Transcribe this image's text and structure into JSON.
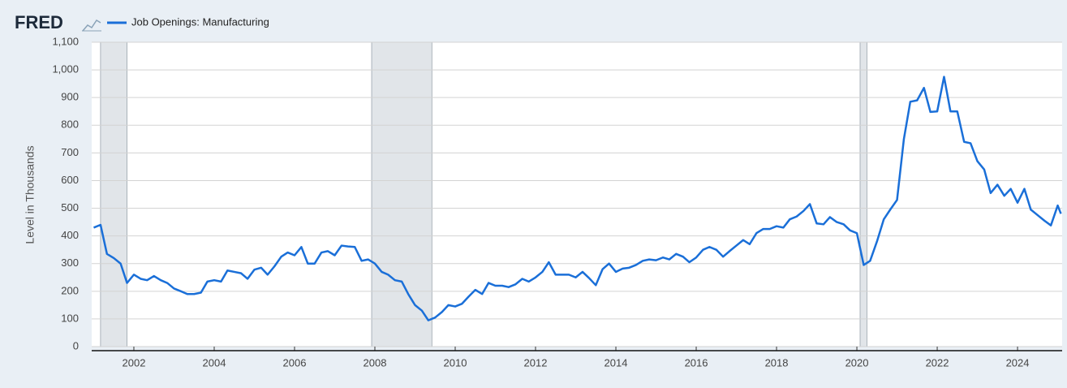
{
  "chart_data": {
    "type": "line",
    "logo": "FRED",
    "y_label": "Level in Thousands",
    "grid": true,
    "xlim": [
      2000.95,
      2025.11
    ],
    "ylim": [
      0,
      1100
    ],
    "xticks": [
      2002,
      2004,
      2006,
      2008,
      2010,
      2012,
      2014,
      2016,
      2018,
      2020,
      2022,
      2024
    ],
    "yticks": [
      0,
      100,
      200,
      300,
      400,
      500,
      600,
      700,
      800,
      900,
      {
        "value": 1000,
        "label": "1,000"
      },
      {
        "value": 1100,
        "label": "1,100"
      }
    ],
    "recession_color": "#e1e5e9",
    "recessions": [
      [
        2001.17,
        2001.83
      ],
      [
        2007.92,
        2009.42
      ],
      [
        2020.08,
        2020.25
      ]
    ],
    "x": [
      2001.0,
      2001.17,
      2001.33,
      2001.5,
      2001.67,
      2001.83,
      2002.0,
      2002.17,
      2002.33,
      2002.5,
      2002.67,
      2002.83,
      2003.0,
      2003.17,
      2003.33,
      2003.5,
      2003.67,
      2003.83,
      2004.0,
      2004.17,
      2004.33,
      2004.5,
      2004.67,
      2004.83,
      2005.0,
      2005.17,
      2005.33,
      2005.5,
      2005.67,
      2005.83,
      2006.0,
      2006.17,
      2006.33,
      2006.5,
      2006.67,
      2006.83,
      2007.0,
      2007.17,
      2007.33,
      2007.5,
      2007.67,
      2007.83,
      2008.0,
      2008.17,
      2008.33,
      2008.5,
      2008.67,
      2008.83,
      2009.0,
      2009.17,
      2009.33,
      2009.5,
      2009.67,
      2009.83,
      2010.0,
      2010.17,
      2010.33,
      2010.5,
      2010.67,
      2010.83,
      2011.0,
      2011.17,
      2011.33,
      2011.5,
      2011.67,
      2011.83,
      2012.0,
      2012.17,
      2012.33,
      2012.5,
      2012.67,
      2012.83,
      2013.0,
      2013.17,
      2013.33,
      2013.5,
      2013.67,
      2013.83,
      2014.0,
      2014.17,
      2014.33,
      2014.5,
      2014.67,
      2014.83,
      2015.0,
      2015.17,
      2015.33,
      2015.5,
      2015.67,
      2015.83,
      2016.0,
      2016.17,
      2016.33,
      2016.5,
      2016.67,
      2016.83,
      2017.0,
      2017.17,
      2017.33,
      2017.5,
      2017.67,
      2017.83,
      2018.0,
      2018.17,
      2018.33,
      2018.5,
      2018.67,
      2018.83,
      2019.0,
      2019.17,
      2019.33,
      2019.5,
      2019.67,
      2019.83,
      2020.0,
      2020.17,
      2020.33,
      2020.5,
      2020.67,
      2020.83,
      2021.0,
      2021.17,
      2021.33,
      2021.5,
      2021.67,
      2021.83,
      2022.0,
      2022.17,
      2022.33,
      2022.5,
      2022.67,
      2022.83,
      2023.0,
      2023.17,
      2023.33,
      2023.5,
      2023.67,
      2023.83,
      2024.0,
      2024.17,
      2024.33,
      2024.5,
      2024.67,
      2024.83,
      2025.0,
      2025.08
    ],
    "series": [
      {
        "name": "Job Openings: Manufacturing",
        "color": "#1a6fd8",
        "values": [
          430,
          440,
          335,
          320,
          300,
          230,
          260,
          245,
          240,
          255,
          240,
          230,
          210,
          200,
          190,
          190,
          195,
          235,
          240,
          235,
          275,
          270,
          265,
          245,
          278,
          285,
          260,
          290,
          325,
          340,
          330,
          360,
          300,
          300,
          340,
          345,
          330,
          365,
          362,
          360,
          310,
          315,
          300,
          270,
          260,
          240,
          235,
          190,
          150,
          130,
          95,
          105,
          125,
          150,
          145,
          155,
          180,
          205,
          190,
          230,
          220,
          220,
          215,
          225,
          245,
          235,
          250,
          270,
          305,
          260,
          260,
          260,
          250,
          270,
          248,
          222,
          280,
          300,
          270,
          282,
          285,
          295,
          310,
          315,
          312,
          322,
          315,
          335,
          325,
          305,
          322,
          350,
          360,
          350,
          325,
          345,
          365,
          385,
          370,
          410,
          425,
          425,
          435,
          430,
          460,
          470,
          490,
          515,
          445,
          442,
          468,
          450,
          442,
          420,
          410,
          295,
          310,
          380,
          460,
          495,
          530,
          750,
          885,
          890,
          935,
          848,
          850,
          975,
          850,
          850,
          740,
          735,
          670,
          640,
          555,
          585,
          545,
          570,
          520,
          570,
          495,
          475,
          455,
          438,
          510,
          480
        ]
      }
    ]
  }
}
